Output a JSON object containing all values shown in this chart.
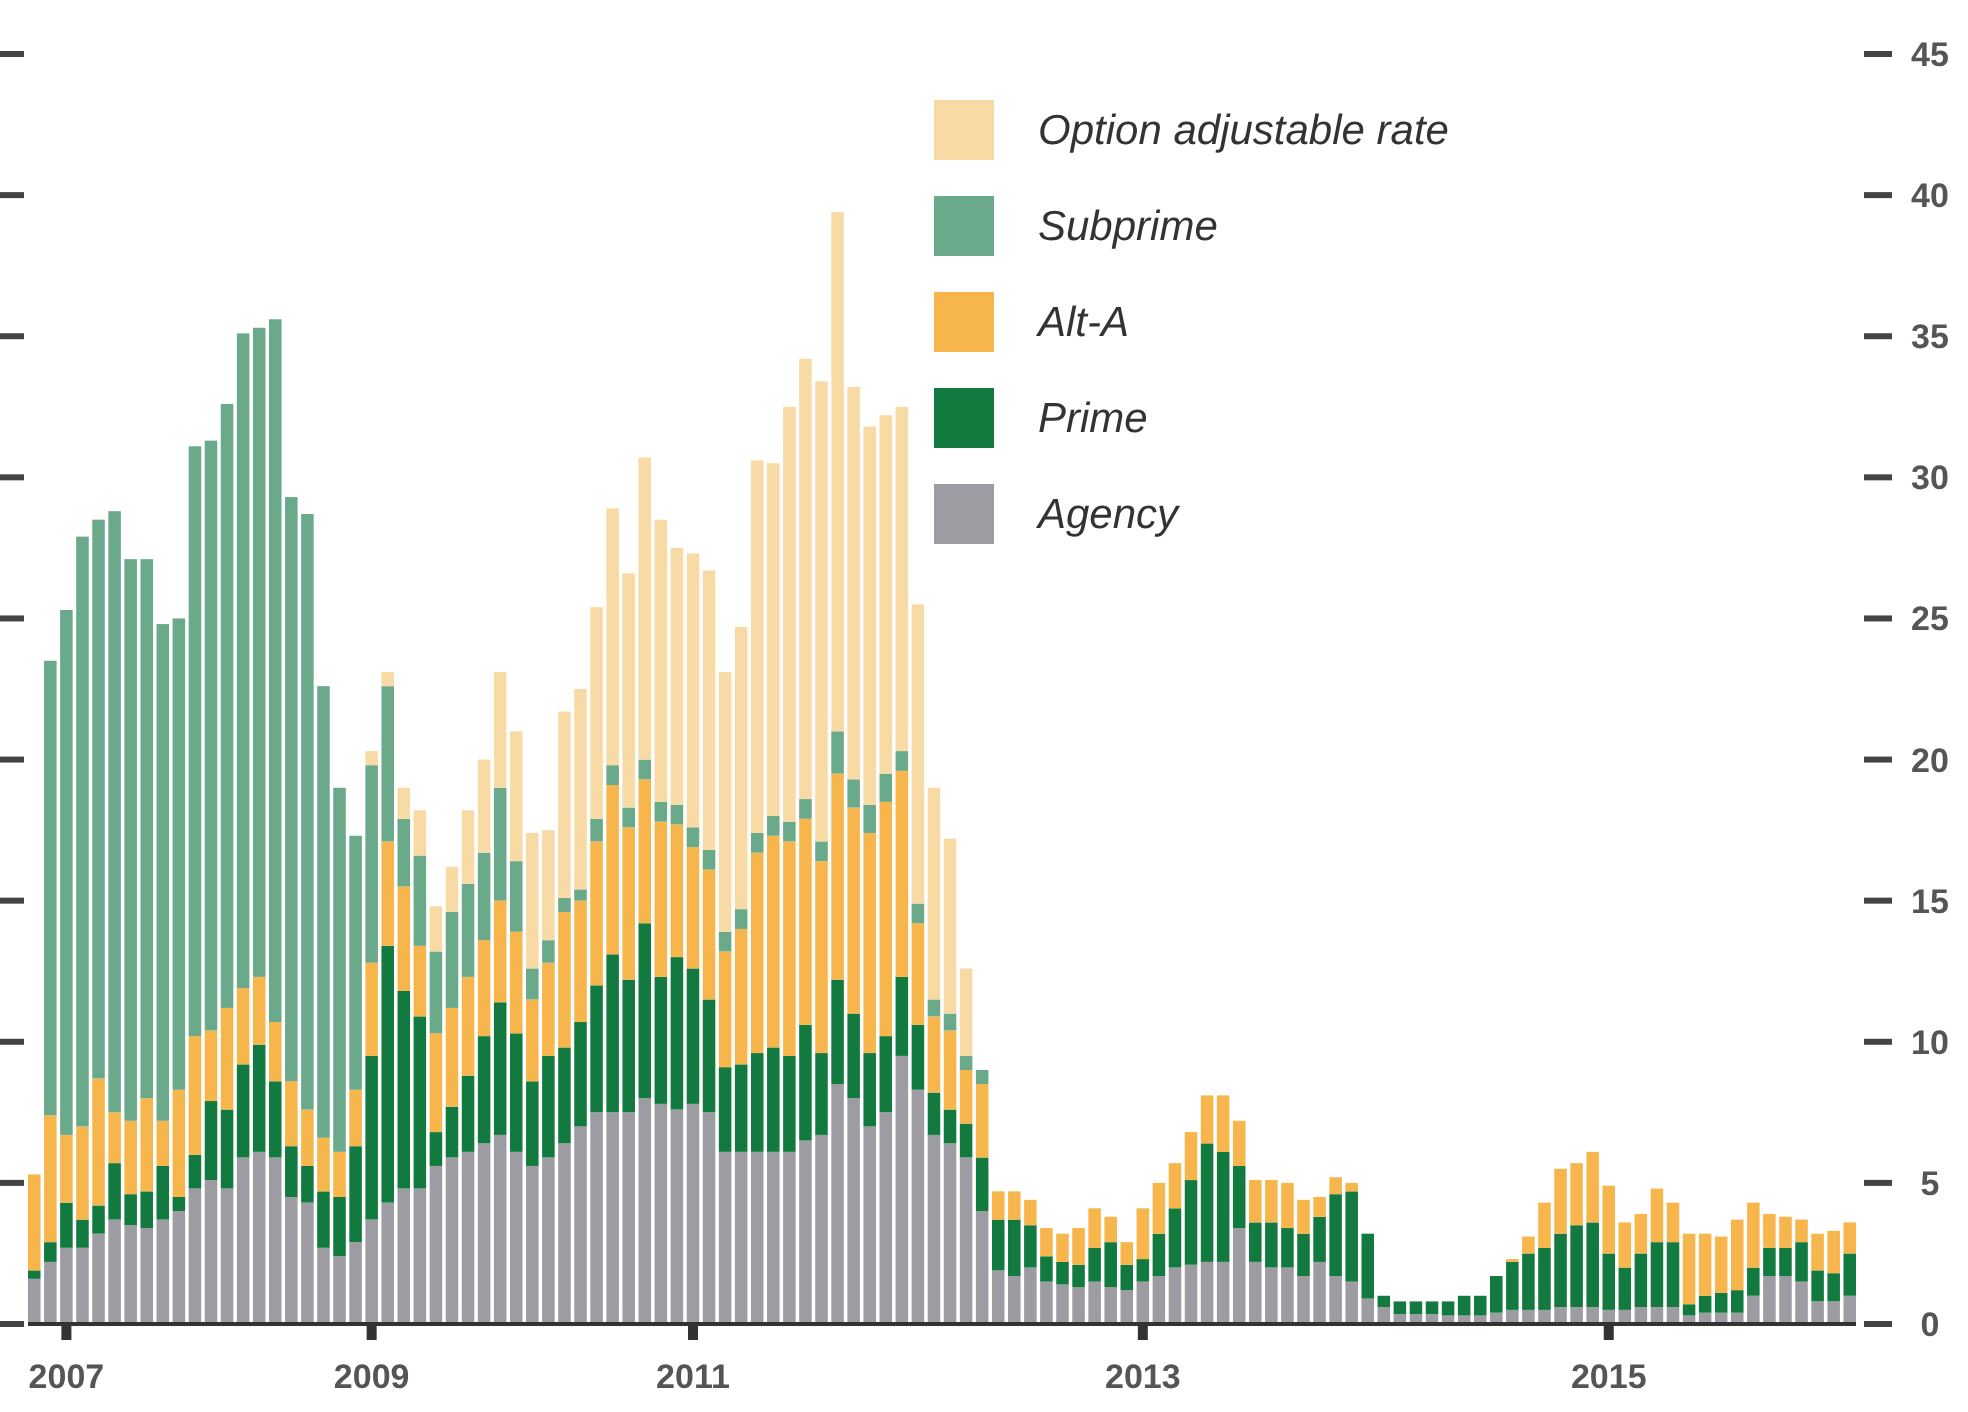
{
  "chart_data": {
    "type": "bar",
    "stacked": true,
    "legend": "top",
    "grid": false,
    "categories": [
      null,
      null,
      "2007",
      null,
      null,
      null,
      null,
      null,
      null,
      null,
      null,
      null,
      null,
      null,
      null,
      null,
      null,
      null,
      null,
      null,
      null,
      "2009",
      null,
      null,
      null,
      null,
      null,
      null,
      null,
      null,
      null,
      null,
      null,
      null,
      null,
      null,
      null,
      null,
      null,
      null,
      null,
      "2011",
      null,
      null,
      null,
      null,
      null,
      null,
      null,
      null,
      null,
      null,
      null,
      null,
      null,
      null,
      null,
      null,
      null,
      null,
      null,
      null,
      null,
      null,
      null,
      null,
      null,
      null,
      null,
      "2013",
      null,
      null,
      null,
      null,
      null,
      null,
      null,
      null,
      null,
      null,
      null,
      null,
      null,
      null,
      null,
      null,
      null,
      null,
      null,
      null,
      null,
      null,
      null,
      null,
      null,
      null,
      null,
      null,
      "2015",
      null,
      null,
      null,
      null,
      null,
      null,
      null,
      null,
      null,
      null,
      null,
      null,
      null,
      null,
      null
    ],
    "ylim": [
      0,
      45
    ],
    "yticks": [
      0,
      5,
      10,
      15,
      20,
      25,
      30,
      35,
      40,
      45
    ],
    "series": [
      {
        "name": "Agency",
        "color": "#9e9ca3",
        "values": [
          1.6,
          2.2,
          2.7,
          2.7,
          3.2,
          3.7,
          3.5,
          3.4,
          3.7,
          4.0,
          4.8,
          5.1,
          4.8,
          5.9,
          6.1,
          5.9,
          4.5,
          4.3,
          2.7,
          2.4,
          2.9,
          3.7,
          4.3,
          4.8,
          4.8,
          5.6,
          5.9,
          6.1,
          6.4,
          6.7,
          6.1,
          5.6,
          5.9,
          6.4,
          7.0,
          7.5,
          7.5,
          7.5,
          8.0,
          7.8,
          7.6,
          7.8,
          7.5,
          6.1,
          6.1,
          6.1,
          6.1,
          6.1,
          6.5,
          6.7,
          8.5,
          8.0,
          7.0,
          7.5,
          9.5,
          8.3,
          6.7,
          6.4,
          5.9,
          4.0,
          1.9,
          1.7,
          2.0,
          1.5,
          1.4,
          1.3,
          1.5,
          1.3,
          1.2,
          1.5,
          1.7,
          2.0,
          2.1,
          2.2,
          2.2,
          3.4,
          2.2,
          2.0,
          2.0,
          1.7,
          2.2,
          1.7,
          1.5,
          0.9,
          0.6,
          0.35,
          0.35,
          0.35,
          0.3,
          0.3,
          0.3,
          0.4,
          0.5,
          0.5,
          0.5,
          0.6,
          0.6,
          0.6,
          0.5,
          0.5,
          0.6,
          0.6,
          0.6,
          0.3,
          0.4,
          0.4,
          0.4,
          1.0,
          1.7,
          1.7,
          1.5,
          0.8,
          0.8,
          1.0
        ]
      },
      {
        "name": "Prime",
        "color": "#127a3f",
        "values": [
          0.3,
          0.7,
          1.6,
          1.0,
          1.0,
          2.0,
          1.1,
          1.3,
          1.9,
          0.5,
          1.2,
          2.8,
          2.8,
          3.3,
          3.8,
          2.7,
          1.8,
          1.3,
          2.0,
          2.1,
          3.4,
          5.8,
          9.1,
          7.0,
          6.1,
          1.2,
          1.8,
          2.7,
          3.8,
          4.7,
          4.2,
          3.0,
          3.6,
          3.4,
          3.7,
          4.5,
          5.6,
          4.7,
          6.2,
          4.5,
          5.4,
          4.8,
          4.0,
          3.0,
          3.1,
          3.5,
          3.7,
          3.4,
          4.1,
          2.9,
          3.7,
          3.0,
          2.6,
          2.7,
          2.8,
          2.3,
          1.5,
          1.2,
          1.2,
          1.9,
          1.8,
          2.0,
          1.5,
          0.9,
          0.8,
          0.8,
          1.2,
          1.6,
          0.9,
          0.8,
          1.5,
          2.1,
          3.0,
          4.2,
          3.9,
          2.2,
          1.4,
          1.6,
          1.4,
          1.5,
          1.6,
          2.9,
          3.2,
          2.3,
          0.4,
          0.45,
          0.45,
          0.45,
          0.5,
          0.7,
          0.7,
          1.3,
          1.7,
          2.0,
          2.2,
          2.6,
          2.9,
          3.0,
          2.0,
          1.5,
          1.9,
          2.3,
          2.3,
          0.4,
          0.6,
          0.7,
          0.8,
          1.0,
          1.0,
          1.0,
          1.4,
          1.1,
          1.0,
          1.5
        ]
      },
      {
        "name": "Alt-A",
        "color": "#f7b64c",
        "values": [
          3.4,
          4.5,
          2.4,
          3.3,
          4.5,
          1.8,
          2.6,
          3.3,
          1.6,
          3.8,
          4.2,
          2.5,
          3.6,
          2.7,
          2.4,
          2.1,
          2.3,
          2.0,
          1.9,
          1.6,
          2.0,
          3.3,
          3.7,
          3.7,
          2.5,
          3.5,
          3.5,
          3.5,
          3.4,
          3.6,
          3.6,
          2.9,
          3.3,
          4.8,
          4.3,
          5.1,
          6.0,
          5.4,
          5.1,
          5.5,
          4.7,
          4.3,
          4.6,
          4.1,
          4.8,
          7.1,
          7.5,
          7.6,
          7.3,
          6.8,
          7.3,
          7.3,
          7.8,
          8.3,
          7.3,
          3.6,
          2.7,
          2.8,
          1.9,
          2.6,
          1.0,
          1.0,
          0.9,
          1.0,
          1.0,
          1.3,
          1.4,
          0.9,
          0.8,
          1.8,
          1.8,
          1.6,
          1.7,
          1.7,
          2.0,
          1.6,
          1.5,
          1.5,
          1.6,
          1.2,
          0.7,
          0.6,
          0.3,
          0,
          0,
          0,
          0,
          0,
          0,
          0,
          0,
          0,
          0.1,
          0.6,
          1.6,
          2.3,
          2.2,
          2.5,
          2.4,
          1.6,
          1.4,
          1.9,
          1.4,
          2.5,
          2.2,
          2.0,
          2.5,
          2.3,
          1.2,
          1.1,
          0.8,
          1.3,
          1.5,
          1.1
        ]
      },
      {
        "name": "Subprime",
        "color": "#6aa98a",
        "values": [
          0,
          16.1,
          18.6,
          20.9,
          19.8,
          21.3,
          19.9,
          19.1,
          17.6,
          16.7,
          20.9,
          20.9,
          21.4,
          23.2,
          23.0,
          24.9,
          20.7,
          21.1,
          16.0,
          12.9,
          9.0,
          7.0,
          5.5,
          2.4,
          3.2,
          2.9,
          3.4,
          3.3,
          3.1,
          4.0,
          2.5,
          1.1,
          0.8,
          0.5,
          0.4,
          0.8,
          0.7,
          0.7,
          0.7,
          0.7,
          0.7,
          0.7,
          0.7,
          0.7,
          0.7,
          0.7,
          0.7,
          0.7,
          0.7,
          0.7,
          1.5,
          1.0,
          1.0,
          1.0,
          0.7,
          0.7,
          0.6,
          0.6,
          0.5,
          0.5,
          0,
          0,
          0,
          0,
          0,
          0,
          0,
          0,
          0,
          0,
          0,
          0,
          0,
          0,
          0,
          0,
          0,
          0,
          0,
          0,
          0,
          0,
          0,
          0,
          0,
          0,
          0,
          0,
          0,
          0,
          0,
          0,
          0,
          0,
          0,
          0,
          0,
          0,
          0,
          0,
          0,
          0,
          0,
          0,
          0,
          0,
          0,
          0,
          0,
          0,
          0,
          0,
          0,
          0
        ]
      },
      {
        "name": "Option adjustable rate",
        "color": "#f8dba4",
        "values": [
          0,
          0,
          0,
          0,
          0,
          0,
          0,
          0,
          0,
          0,
          0,
          0,
          0,
          0,
          0,
          0,
          0,
          0,
          0,
          0,
          0,
          0.5,
          0.5,
          1.1,
          1.6,
          1.6,
          1.6,
          2.6,
          3.3,
          4.1,
          4.6,
          4.8,
          3.9,
          6.6,
          7.1,
          7.5,
          9.1,
          8.3,
          10.7,
          10.0,
          9.1,
          9.7,
          9.9,
          9.2,
          10.0,
          13.2,
          12.5,
          14.7,
          15.6,
          16.3,
          18.4,
          13.9,
          13.4,
          12.7,
          12.2,
          10.6,
          7.5,
          6.2,
          3.1,
          0,
          0,
          0,
          0,
          0,
          0,
          0,
          0,
          0,
          0,
          0,
          0,
          0,
          0,
          0,
          0,
          0,
          0,
          0,
          0,
          0,
          0,
          0,
          0,
          0,
          0,
          0,
          0,
          0,
          0,
          0,
          0,
          0,
          0,
          0,
          0,
          0,
          0,
          0,
          0,
          0,
          0,
          0,
          0,
          0,
          0,
          0,
          0,
          0,
          0,
          0,
          0,
          0,
          0,
          0
        ]
      }
    ]
  }
}
